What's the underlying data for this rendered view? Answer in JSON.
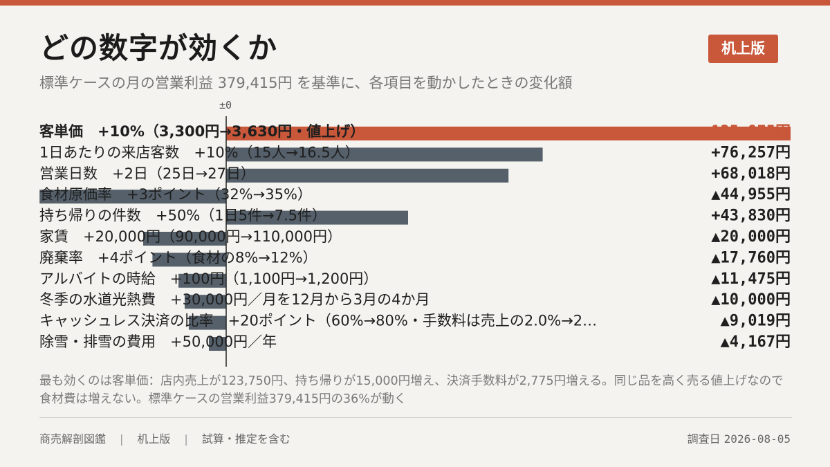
{
  "header": {
    "title": "どの数字が効くか",
    "badge": "机上版",
    "subtitle": "標準ケースの月の営業利益 379,415円 を基準に、各項目を動かしたときの変化額"
  },
  "colors": {
    "accent": "#c9573a",
    "bar": "#55606b",
    "background": "#f4f3ef"
  },
  "chart_data": {
    "type": "bar",
    "orientation": "horizontal",
    "baseline": 0,
    "baseline_label": "±0",
    "categories": [
      "客単価　+10%（3,300円→3,630円・値上げ）",
      "1日あたりの来店客数　+10%（15人→16.5人）",
      "営業日数　+2日（25日→27日）",
      "食材原価率　+3ポイント（32%→35%）",
      "持ち帰りの件数　+50%（1日5件→7.5件）",
      "家賃　+20,000円（90,000円→110,000円）",
      "廃棄率　+4ポイント（食材の8%→12%）",
      "アルバイトの時給　+100円（1,100円→1,200円）",
      "冬季の水道光熱費　+30,000円／月を12月から3月の4か月",
      "キャッシュレス決済の比率　+20ポイント（60%→80%・手数料は売上の2.0%→2…",
      "除雪・排雪の費用　+50,000円／年"
    ],
    "values": [
      135975,
      76257,
      68018,
      -44955,
      43830,
      -20000,
      -17760,
      -11475,
      -10000,
      -9019,
      -4167
    ],
    "value_labels": [
      "+135,975円",
      "+76,257円",
      "+68,018円",
      "▲44,955円",
      "+43,830円",
      "▲20,000円",
      "▲17,760円",
      "▲11,475円",
      "▲10,000円",
      "▲9,019円",
      "▲4,167円"
    ],
    "highlight_index": 0,
    "legend": "none",
    "grid": false
  },
  "footnote": "最も効くのは客単価：店内売上が123,750円、持ち帰りが15,000円増え、決済手数料が2,775円増える。同じ品を高く売る値上げなので食材費は増えない。標準ケースの営業利益379,415円の36%が動く",
  "footer": {
    "source": "商売解剖図鑑",
    "edition": "机上版",
    "note": "試算・推定を含む",
    "date_label": "調査日",
    "date": "2026-08-05"
  }
}
